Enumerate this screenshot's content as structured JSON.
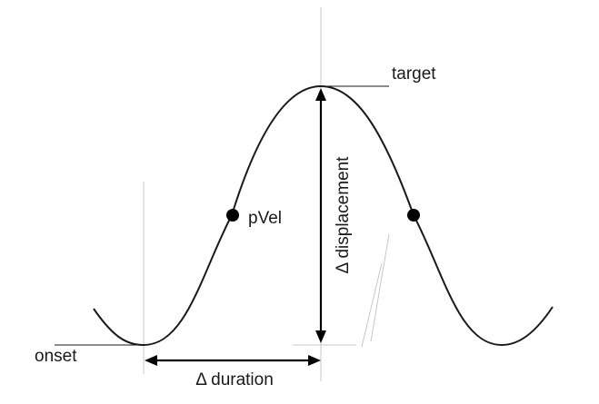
{
  "labels": {
    "target": "target",
    "onset": "onset",
    "peak_velocity": "pVel",
    "displacement": "Δ displacement",
    "duration": "Δ duration"
  },
  "colors": {
    "curve": "#1a1a1a",
    "guide": "#c8c8c8",
    "marker": "#000000"
  }
}
